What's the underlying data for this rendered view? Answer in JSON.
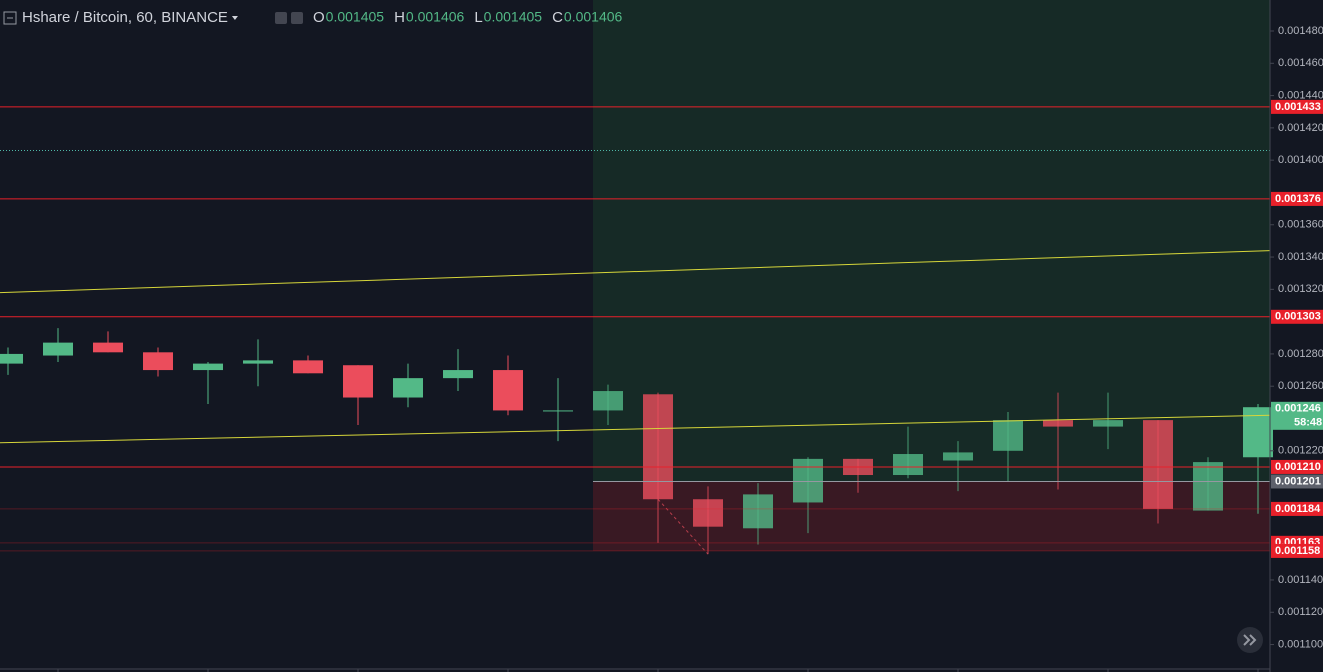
{
  "chart_data": {
    "type": "candlestick",
    "title": "Hshare / Bitcoin, 60, BINANCE",
    "ohlc_header": [
      {
        "key": "O",
        "value": 0.001405
      },
      {
        "key": "H",
        "value": 0.001406
      },
      {
        "key": "L",
        "value": 0.001405
      },
      {
        "key": "C",
        "value": 0.001406
      }
    ],
    "open": [
      0.001274,
      0.001279,
      0.001287,
      0.001281,
      0.00127,
      0.001274,
      0.001276,
      0.001273,
      0.001253,
      0.001265,
      0.00127,
      0.001245,
      0.001245,
      0.001255,
      0.00119,
      0.001172,
      0.001188,
      0.001215,
      0.001205,
      0.001214,
      0.00122,
      0.001239,
      0.001235,
      0.001239,
      0.001183,
      0.001216
    ],
    "high": [
      0.001284,
      0.001296,
      0.001294,
      0.001284,
      0.001275,
      0.001289,
      0.001279,
      0.001273,
      0.001274,
      0.001283,
      0.001279,
      0.001265,
      0.001261,
      0.001256,
      0.001198,
      0.0012,
      0.001216,
      0.001215,
      0.001235,
      0.001226,
      0.001244,
      0.001256,
      0.001256,
      0.001239,
      0.001216,
      0.001249
    ],
    "low": [
      0.001267,
      0.001275,
      0.001281,
      0.001266,
      0.001249,
      0.00126,
      0.001268,
      0.001236,
      0.001247,
      0.001257,
      0.001242,
      0.001226,
      0.001236,
      0.001163,
      0.001156,
      0.001162,
      0.001169,
      0.001194,
      0.001203,
      0.001195,
      0.001201,
      0.001196,
      0.001221,
      0.001175,
      0.001183,
      0.001181
    ],
    "close": [
      0.00128,
      0.001287,
      0.001281,
      0.00127,
      0.001274,
      0.001276,
      0.001268,
      0.001253,
      0.001265,
      0.00127,
      0.001245,
      0.001245,
      0.001257,
      0.00119,
      0.001173,
      0.001193,
      0.001215,
      0.001205,
      0.001218,
      0.001219,
      0.001239,
      0.001235,
      0.001239,
      0.001184,
      0.001213,
      0.001247
    ],
    "up_color": "#53b987",
    "down_color": "#eb4d5c",
    "ylim": [
      0.001083,
      0.0014992
    ],
    "yticks": [
      {
        "value": 0.00148,
        "label": "0.001480"
      },
      {
        "value": 0.00146,
        "label": "0.001460"
      },
      {
        "value": 0.00144,
        "label": "0.001440"
      },
      {
        "value": 0.00142,
        "label": "0.001420"
      },
      {
        "value": 0.0014,
        "label": "0.001400"
      },
      {
        "value": 0.00136,
        "label": "0.001360"
      },
      {
        "value": 0.00134,
        "label": "0.001340"
      },
      {
        "value": 0.00132,
        "label": "0.001320"
      },
      {
        "value": 0.00128,
        "label": "0.001280"
      },
      {
        "value": 0.00126,
        "label": "0.001260"
      },
      {
        "value": 0.00122,
        "label": "0.001220"
      },
      {
        "value": 0.00114,
        "label": "0.001140"
      },
      {
        "value": 0.00112,
        "label": "0.001120"
      },
      {
        "value": 0.0011,
        "label": "0.001100"
      }
    ],
    "levels": [
      0.001433,
      0.001376,
      0.001303,
      {
        "value": 0.00121,
        "label": "0.001210"
      },
      0.001184,
      0.001163,
      0.001158
    ],
    "level_color": "#e8202a",
    "trendlines": [
      {
        "start": 0.001318,
        "end": 0.001344
      },
      {
        "start": 0.001225,
        "end": 0.001242
      }
    ],
    "trendline_color": "#d6d63a",
    "dotted_line": 0.001406,
    "entry": 0.001201,
    "last_price": 0.001246,
    "countdown": "58:48"
  }
}
